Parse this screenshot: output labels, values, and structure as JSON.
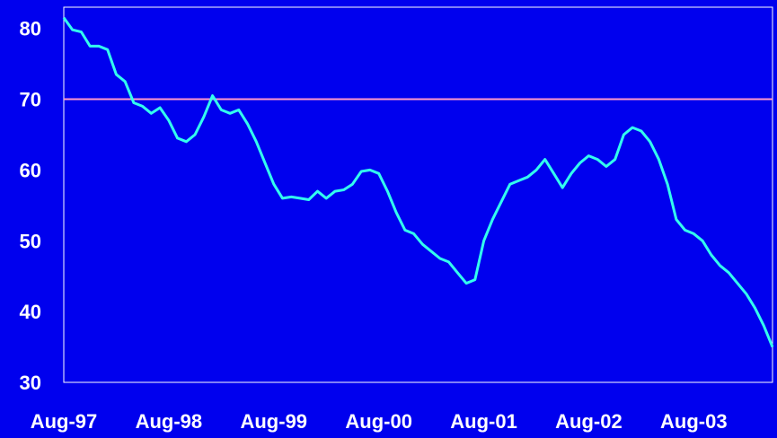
{
  "colors": {
    "background": "#0000ee",
    "plot_frame": "#ffffff",
    "series_line": "#33ffee",
    "reference_line": "#ff99cc",
    "text": "#ffffff"
  },
  "chart_data": {
    "type": "line",
    "title": "",
    "xlabel": "",
    "ylabel": "",
    "ylim": [
      30,
      83
    ],
    "yticks": [
      "30",
      "40",
      "50",
      "60",
      "70",
      "80"
    ],
    "xticks": [
      "Aug-97",
      "Aug-98",
      "Aug-99",
      "Aug-00",
      "Aug-01",
      "Aug-02",
      "Aug-03"
    ],
    "x_range_months": [
      "1997-08",
      "2004-05"
    ],
    "grid": false,
    "legend": "none",
    "reference_line": {
      "y": 70
    },
    "series": [
      {
        "points": [
          [
            "1997-08",
            81.5
          ],
          [
            "1997-09",
            79.8
          ],
          [
            "1997-10",
            79.5
          ],
          [
            "1997-11",
            77.5
          ],
          [
            "1997-12",
            77.5
          ],
          [
            "1998-01",
            77.0
          ],
          [
            "1998-02",
            73.5
          ],
          [
            "1998-03",
            72.5
          ],
          [
            "1998-04",
            69.5
          ],
          [
            "1998-05",
            69.0
          ],
          [
            "1998-06",
            68.0
          ],
          [
            "1998-07",
            68.8
          ],
          [
            "1998-08",
            67.0
          ],
          [
            "1998-09",
            64.5
          ],
          [
            "1998-10",
            64.0
          ],
          [
            "1998-11",
            65.0
          ],
          [
            "1998-12",
            67.5
          ],
          [
            "1999-01",
            70.5
          ],
          [
            "1999-02",
            68.5
          ],
          [
            "1999-03",
            68.0
          ],
          [
            "1999-04",
            68.5
          ],
          [
            "1999-05",
            66.5
          ],
          [
            "1999-06",
            64.0
          ],
          [
            "1999-07",
            61.0
          ],
          [
            "1999-08",
            58.0
          ],
          [
            "1999-09",
            56.0
          ],
          [
            "1999-10",
            56.2
          ],
          [
            "1999-11",
            56.0
          ],
          [
            "1999-12",
            55.8
          ],
          [
            "2000-01",
            57.0
          ],
          [
            "2000-02",
            56.0
          ],
          [
            "2000-03",
            57.0
          ],
          [
            "2000-04",
            57.2
          ],
          [
            "2000-05",
            58.0
          ],
          [
            "2000-06",
            59.8
          ],
          [
            "2000-07",
            60.0
          ],
          [
            "2000-08",
            59.5
          ],
          [
            "2000-09",
            57.0
          ],
          [
            "2000-10",
            54.0
          ],
          [
            "2000-11",
            51.5
          ],
          [
            "2000-12",
            51.0
          ],
          [
            "2001-01",
            49.5
          ],
          [
            "2001-02",
            48.5
          ],
          [
            "2001-03",
            47.5
          ],
          [
            "2001-04",
            47.0
          ],
          [
            "2001-05",
            45.5
          ],
          [
            "2001-06",
            44.0
          ],
          [
            "2001-07",
            44.5
          ],
          [
            "2001-08",
            50.0
          ],
          [
            "2001-09",
            53.0
          ],
          [
            "2001-10",
            55.5
          ],
          [
            "2001-11",
            58.0
          ],
          [
            "2001-12",
            58.5
          ],
          [
            "2002-01",
            59.0
          ],
          [
            "2002-02",
            60.0
          ],
          [
            "2002-03",
            61.5
          ],
          [
            "2002-04",
            59.5
          ],
          [
            "2002-05",
            57.5
          ],
          [
            "2002-06",
            59.5
          ],
          [
            "2002-07",
            61.0
          ],
          [
            "2002-08",
            62.0
          ],
          [
            "2002-09",
            61.5
          ],
          [
            "2002-10",
            60.5
          ],
          [
            "2002-11",
            61.5
          ],
          [
            "2002-12",
            65.0
          ],
          [
            "2003-01",
            66.0
          ],
          [
            "2003-02",
            65.5
          ],
          [
            "2003-03",
            64.0
          ],
          [
            "2003-04",
            61.5
          ],
          [
            "2003-05",
            58.0
          ],
          [
            "2003-06",
            53.0
          ],
          [
            "2003-07",
            51.5
          ],
          [
            "2003-08",
            51.0
          ],
          [
            "2003-09",
            50.0
          ],
          [
            "2003-10",
            48.0
          ],
          [
            "2003-11",
            46.5
          ],
          [
            "2003-12",
            45.5
          ],
          [
            "2004-01",
            44.0
          ],
          [
            "2004-02",
            42.5
          ],
          [
            "2004-03",
            40.5
          ],
          [
            "2004-04",
            38.0
          ],
          [
            "2004-05",
            35.0
          ]
        ]
      }
    ]
  }
}
